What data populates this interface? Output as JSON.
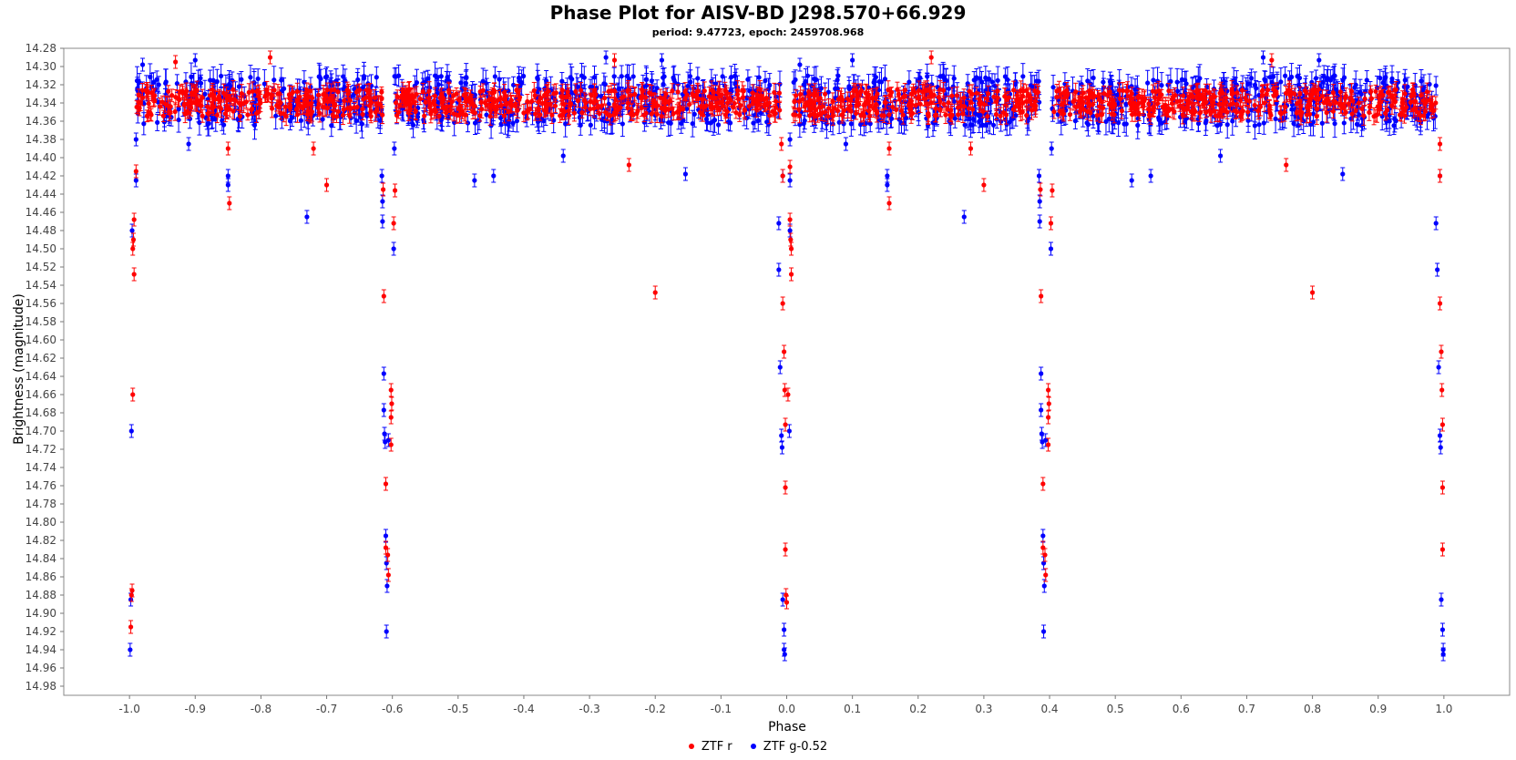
{
  "chart_data": {
    "type": "scatter",
    "title": "Phase Plot for AISV-BD J298.570+66.929",
    "subtitle": "period: 9.47723, epoch: 2459708.968",
    "xlabel": "Phase",
    "ylabel": "Brightness (magnitude)",
    "xlim": [
      -1.1,
      1.1
    ],
    "ylim": [
      14.28,
      14.99
    ],
    "y_inverted": true,
    "x_ticks": [
      -1.0,
      -0.9,
      -0.8,
      -0.7,
      -0.6,
      -0.5,
      -0.4,
      -0.3,
      -0.2,
      -0.1,
      0.0,
      0.1,
      0.2,
      0.3,
      0.4,
      0.5,
      0.6,
      0.7,
      0.8,
      0.9,
      1.0
    ],
    "y_ticks": [
      14.28,
      14.3,
      14.32,
      14.34,
      14.36,
      14.38,
      14.4,
      14.42,
      14.44,
      14.46,
      14.48,
      14.5,
      14.52,
      14.54,
      14.56,
      14.58,
      14.6,
      14.62,
      14.64,
      14.66,
      14.68,
      14.7,
      14.72,
      14.74,
      14.76,
      14.78,
      14.8,
      14.82,
      14.84,
      14.86,
      14.88,
      14.9,
      14.92,
      14.94,
      14.96,
      14.98
    ],
    "legend_position": "bottom-center",
    "grid": false,
    "series": [
      {
        "name": "ZTF r",
        "color": "#ff0000",
        "points": [
          [
            -0.99,
            14.415
          ],
          [
            -0.993,
            14.468
          ],
          [
            -0.994,
            14.49
          ],
          [
            -0.995,
            14.5
          ],
          [
            -0.993,
            14.528
          ],
          [
            -0.995,
            14.66
          ],
          [
            -0.996,
            14.875
          ],
          [
            -0.997,
            14.88
          ],
          [
            -0.998,
            14.915
          ],
          [
            -0.93,
            14.295
          ],
          [
            -0.85,
            14.39
          ],
          [
            -0.848,
            14.45
          ],
          [
            -0.786,
            14.29
          ],
          [
            -0.72,
            14.39
          ],
          [
            -0.7,
            14.43
          ],
          [
            -0.614,
            14.435
          ],
          [
            -0.613,
            14.552
          ],
          [
            -0.61,
            14.758
          ],
          [
            -0.61,
            14.828
          ],
          [
            -0.607,
            14.836
          ],
          [
            -0.606,
            14.858
          ],
          [
            -0.602,
            14.655
          ],
          [
            -0.601,
            14.67
          ],
          [
            -0.602,
            14.685
          ],
          [
            -0.602,
            14.715
          ],
          [
            -0.598,
            14.472
          ],
          [
            -0.596,
            14.436
          ],
          [
            -0.262,
            14.293
          ],
          [
            -0.24,
            14.408
          ],
          [
            -0.2,
            14.548
          ],
          [
            -0.008,
            14.385
          ],
          [
            -0.006,
            14.42
          ],
          [
            -0.006,
            14.56
          ],
          [
            -0.004,
            14.613
          ],
          [
            -0.003,
            14.655
          ],
          [
            -0.002,
            14.693
          ],
          [
            -0.002,
            14.762
          ],
          [
            -0.002,
            14.83
          ],
          [
            -0.001,
            14.88
          ],
          [
            0.0,
            14.888
          ],
          [
            0.002,
            14.66
          ],
          [
            0.005,
            14.41
          ],
          [
            0.005,
            14.468
          ],
          [
            0.006,
            14.49
          ],
          [
            0.007,
            14.5
          ],
          [
            0.007,
            14.528
          ],
          [
            0.156,
            14.39
          ],
          [
            0.156,
            14.45
          ],
          [
            0.22,
            14.29
          ],
          [
            0.28,
            14.39
          ],
          [
            0.3,
            14.43
          ],
          [
            0.386,
            14.435
          ],
          [
            0.387,
            14.552
          ],
          [
            0.39,
            14.758
          ],
          [
            0.39,
            14.828
          ],
          [
            0.393,
            14.836
          ],
          [
            0.394,
            14.858
          ],
          [
            0.398,
            14.655
          ],
          [
            0.399,
            14.67
          ],
          [
            0.398,
            14.685
          ],
          [
            0.398,
            14.715
          ],
          [
            0.402,
            14.472
          ],
          [
            0.404,
            14.436
          ],
          [
            0.738,
            14.293
          ],
          [
            0.76,
            14.408
          ],
          [
            0.8,
            14.548
          ],
          [
            0.994,
            14.385
          ],
          [
            0.994,
            14.42
          ],
          [
            0.994,
            14.56
          ],
          [
            0.996,
            14.613
          ],
          [
            0.997,
            14.655
          ],
          [
            0.998,
            14.693
          ],
          [
            0.998,
            14.762
          ],
          [
            0.998,
            14.83
          ]
        ],
        "band": {
          "y_min": 14.325,
          "y_max": 14.355,
          "y_err": 0.008
        },
        "band_segments": [
          [
            -0.99,
            -0.615
          ],
          [
            -0.595,
            -0.01
          ],
          [
            0.01,
            0.385
          ],
          [
            0.405,
            0.99
          ]
        ]
      },
      {
        "name": "ZTF g-0.52",
        "color": "#0000ff",
        "points": [
          [
            -0.99,
            14.38
          ],
          [
            -0.99,
            14.425
          ],
          [
            -0.996,
            14.48
          ],
          [
            -0.997,
            14.7
          ],
          [
            -0.998,
            14.885
          ],
          [
            -0.999,
            14.94
          ],
          [
            -0.98,
            14.298
          ],
          [
            -0.91,
            14.385
          ],
          [
            -0.9,
            14.293
          ],
          [
            -0.85,
            14.42
          ],
          [
            -0.85,
            14.43
          ],
          [
            -0.73,
            14.465
          ],
          [
            -0.616,
            14.42
          ],
          [
            -0.615,
            14.448
          ],
          [
            -0.615,
            14.47
          ],
          [
            -0.613,
            14.637
          ],
          [
            -0.613,
            14.677
          ],
          [
            -0.612,
            14.703
          ],
          [
            -0.611,
            14.712
          ],
          [
            -0.61,
            14.815
          ],
          [
            -0.609,
            14.845
          ],
          [
            -0.608,
            14.87
          ],
          [
            -0.609,
            14.92
          ],
          [
            -0.606,
            14.71
          ],
          [
            -0.598,
            14.5
          ],
          [
            -0.597,
            14.39
          ],
          [
            -0.475,
            14.425
          ],
          [
            -0.446,
            14.42
          ],
          [
            -0.34,
            14.398
          ],
          [
            -0.275,
            14.29
          ],
          [
            -0.19,
            14.293
          ],
          [
            -0.154,
            14.418
          ],
          [
            -0.012,
            14.472
          ],
          [
            -0.012,
            14.523
          ],
          [
            -0.01,
            14.63
          ],
          [
            -0.008,
            14.705
          ],
          [
            -0.007,
            14.718
          ],
          [
            -0.006,
            14.885
          ],
          [
            -0.004,
            14.918
          ],
          [
            -0.004,
            14.94
          ],
          [
            -0.003,
            14.945
          ],
          [
            -0.006,
            14.42
          ],
          [
            0.005,
            14.38
          ],
          [
            0.005,
            14.425
          ],
          [
            0.005,
            14.48
          ],
          [
            0.004,
            14.7
          ],
          [
            0.02,
            14.298
          ],
          [
            0.09,
            14.385
          ],
          [
            0.1,
            14.293
          ],
          [
            0.153,
            14.42
          ],
          [
            0.153,
            14.43
          ],
          [
            0.27,
            14.465
          ],
          [
            0.384,
            14.42
          ],
          [
            0.385,
            14.448
          ],
          [
            0.385,
            14.47
          ],
          [
            0.387,
            14.637
          ],
          [
            0.387,
            14.677
          ],
          [
            0.388,
            14.703
          ],
          [
            0.389,
            14.712
          ],
          [
            0.39,
            14.815
          ],
          [
            0.391,
            14.845
          ],
          [
            0.392,
            14.87
          ],
          [
            0.391,
            14.92
          ],
          [
            0.394,
            14.71
          ],
          [
            0.402,
            14.5
          ],
          [
            0.403,
            14.39
          ],
          [
            0.525,
            14.425
          ],
          [
            0.554,
            14.42
          ],
          [
            0.66,
            14.398
          ],
          [
            0.725,
            14.29
          ],
          [
            0.81,
            14.293
          ],
          [
            0.846,
            14.418
          ],
          [
            0.988,
            14.472
          ],
          [
            0.99,
            14.523
          ],
          [
            0.992,
            14.63
          ],
          [
            0.994,
            14.705
          ],
          [
            0.995,
            14.718
          ],
          [
            0.996,
            14.885
          ],
          [
            0.998,
            14.918
          ],
          [
            0.999,
            14.94
          ],
          [
            0.999,
            14.945
          ],
          [
            0.994,
            14.42
          ]
        ],
        "band": {
          "y_min": 14.31,
          "y_max": 14.365,
          "y_err": 0.012
        },
        "band_segments": [
          [
            -0.99,
            -0.615
          ],
          [
            -0.597,
            -0.01
          ],
          [
            0.01,
            0.385
          ],
          [
            0.403,
            0.99
          ]
        ]
      }
    ]
  },
  "legend": {
    "r_label": "ZTF r",
    "g_label": "ZTF g-0.52"
  }
}
